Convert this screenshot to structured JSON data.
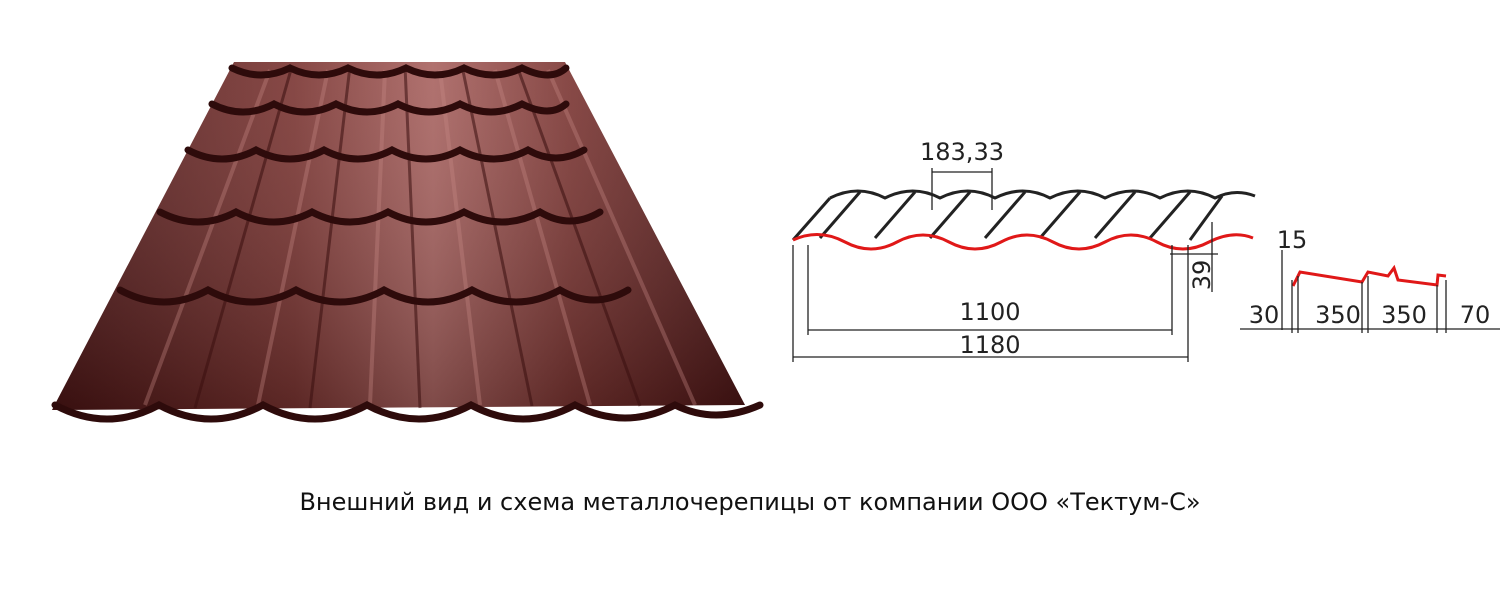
{
  "colors": {
    "tile_base": "#6b2a2a",
    "tile_dark": "#3a0f0f",
    "tile_highlight": "#a8625f",
    "profile_red": "#e01818",
    "line_dark": "#222222"
  },
  "icons": {
    "tile_sheet": "roof-tile-sheet-illustration",
    "profile_drawing": "wave-profile-drawing",
    "side_profile": "step-profile-drawing"
  },
  "dimensions": {
    "wave_pitch": "183,33",
    "wave_height": "39",
    "effective_width": "1100",
    "total_width": "1180",
    "step_height": "15",
    "side_left": "30",
    "step_1": "350",
    "step_2": "350",
    "side_right": "70"
  },
  "caption": "Внешний вид и схема металлочерепицы от компании ООО «Тектум-С»"
}
